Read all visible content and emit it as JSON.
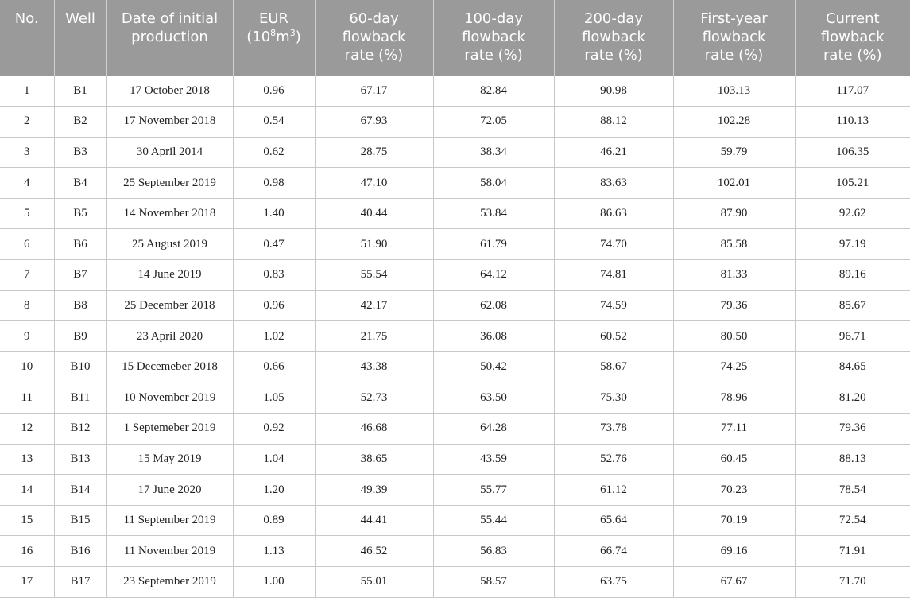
{
  "table": {
    "headers": [
      {
        "lines": [
          "No."
        ]
      },
      {
        "lines": [
          "Well"
        ]
      },
      {
        "lines": [
          "Date of initial",
          "production"
        ]
      },
      {
        "lines": [
          "EUR"
        ],
        "unit_base": "(10",
        "unit_sup1": "8",
        "unit_mid": "m",
        "unit_sup2": "3",
        "unit_end": ")"
      },
      {
        "lines": [
          "60-day",
          "flowback",
          "rate (%)"
        ]
      },
      {
        "lines": [
          "100-day",
          "flowback",
          "rate (%)"
        ]
      },
      {
        "lines": [
          "200-day",
          "flowback",
          "rate (%)"
        ]
      },
      {
        "lines": [
          "First-year",
          "flowback",
          "rate (%)"
        ]
      },
      {
        "lines": [
          "Current",
          "flowback",
          "rate (%)"
        ]
      }
    ],
    "rows": [
      [
        "1",
        "B1",
        "17 October 2018",
        "0.96",
        "67.17",
        "82.84",
        "90.98",
        "103.13",
        "117.07"
      ],
      [
        "2",
        "B2",
        "17 November 2018",
        "0.54",
        "67.93",
        "72.05",
        "88.12",
        "102.28",
        "110.13"
      ],
      [
        "3",
        "B3",
        "30 April 2014",
        "0.62",
        "28.75",
        "38.34",
        "46.21",
        "59.79",
        "106.35"
      ],
      [
        "4",
        "B4",
        "25 September 2019",
        "0.98",
        "47.10",
        "58.04",
        "83.63",
        "102.01",
        "105.21"
      ],
      [
        "5",
        "B5",
        "14 November 2018",
        "1.40",
        "40.44",
        "53.84",
        "86.63",
        "87.90",
        "92.62"
      ],
      [
        "6",
        "B6",
        "25 August 2019",
        "0.47",
        "51.90",
        "61.79",
        "74.70",
        "85.58",
        "97.19"
      ],
      [
        "7",
        "B7",
        "14 June 2019",
        "0.83",
        "55.54",
        "64.12",
        "74.81",
        "81.33",
        "89.16"
      ],
      [
        "8",
        "B8",
        "25 December 2018",
        "0.96",
        "42.17",
        "62.08",
        "74.59",
        "79.36",
        "85.67"
      ],
      [
        "9",
        "B9",
        "23 April 2020",
        "1.02",
        "21.75",
        "36.08",
        "60.52",
        "80.50",
        "96.71"
      ],
      [
        "10",
        "B10",
        "15 Decemeber 2018",
        "0.66",
        "43.38",
        "50.42",
        "58.67",
        "74.25",
        "84.65"
      ],
      [
        "11",
        "B11",
        "10 November 2019",
        "1.05",
        "52.73",
        "63.50",
        "75.30",
        "78.96",
        "81.20"
      ],
      [
        "12",
        "B12",
        "1 Septemeber 2019",
        "0.92",
        "46.68",
        "64.28",
        "73.78",
        "77.11",
        "79.36"
      ],
      [
        "13",
        "B13",
        "15 May 2019",
        "1.04",
        "38.65",
        "43.59",
        "52.76",
        "60.45",
        "88.13"
      ],
      [
        "14",
        "B14",
        "17 June 2020",
        "1.20",
        "49.39",
        "55.77",
        "61.12",
        "70.23",
        "78.54"
      ],
      [
        "15",
        "B15",
        "11 September 2019",
        "0.89",
        "44.41",
        "55.44",
        "65.64",
        "70.19",
        "72.54"
      ],
      [
        "16",
        "B16",
        "11 November 2019",
        "1.13",
        "46.52",
        "56.83",
        "66.74",
        "69.16",
        "71.91"
      ],
      [
        "17",
        "B17",
        "23 September 2019",
        "1.00",
        "55.01",
        "58.57",
        "63.75",
        "67.67",
        "71.70"
      ]
    ]
  },
  "colors": {
    "header_bg": "#9a9a9a",
    "header_text": "#ffffff",
    "grid": "#c8c8c8"
  }
}
